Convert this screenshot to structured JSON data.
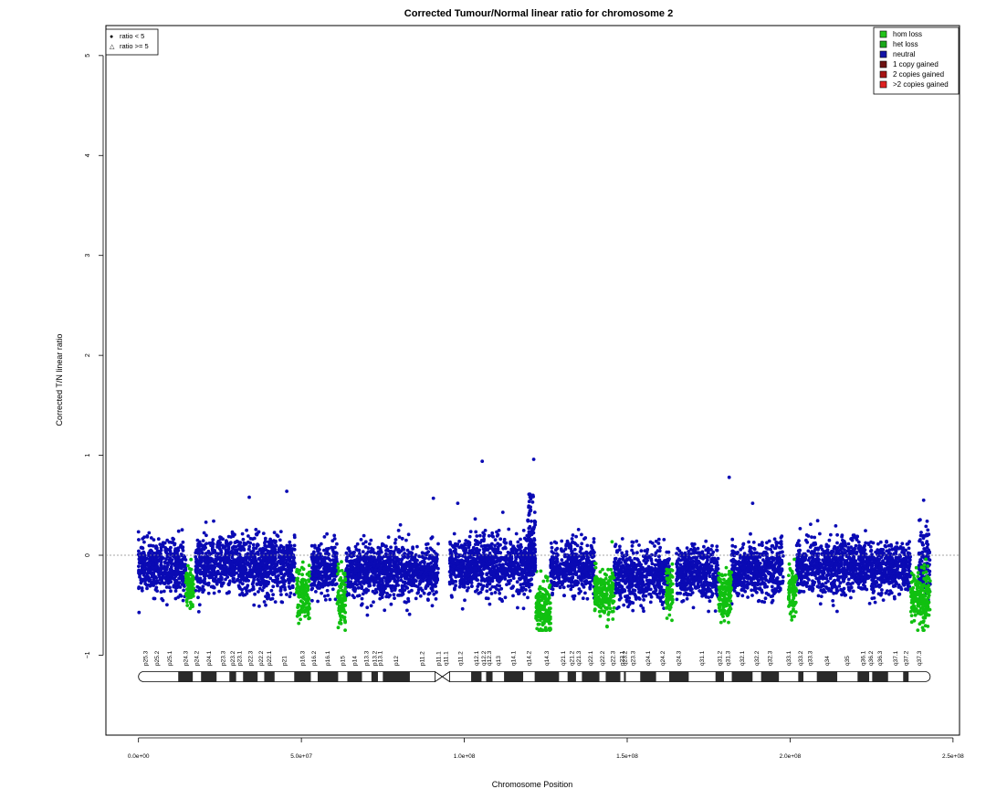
{
  "chart_data": {
    "type": "scatter",
    "title": "Corrected Tumour/Normal linear ratio for chromosome  2",
    "xlabel": "Chromosome Position",
    "ylabel": "Corrected T/N linear ratio",
    "xlim": [
      -10000000,
      252000000
    ],
    "ylim": [
      -1.8,
      5.3
    ],
    "x_ticks": [
      0,
      50000000,
      100000000,
      150000000,
      200000000,
      250000000
    ],
    "x_tick_labels": [
      "0.0e+00",
      "5.0e+07",
      "1.0e+08",
      "1.5e+08",
      "2.0e+08",
      "2.5e+08"
    ],
    "y_ticks": [
      -1,
      0,
      1,
      2,
      3,
      4,
      5
    ],
    "y_tick_labels": [
      "−1",
      "0",
      "1",
      "2",
      "3",
      "4",
      "5"
    ],
    "reference_line": 0,
    "grid": false,
    "shape_legend": {
      "placement": "top-left",
      "items": [
        {
          "symbol": "●",
          "label": "ratio < 5"
        },
        {
          "symbol": "△",
          "label": "ratio >= 5"
        }
      ]
    },
    "legend": {
      "placement": "top-right",
      "items": [
        {
          "label": "hom loss",
          "color": "#22c41a"
        },
        {
          "label": "het loss",
          "color": "#1aa81a"
        },
        {
          "label": "neutral",
          "color": "#1414a8"
        },
        {
          "label": "1 copy gained",
          "color": "#6e1212"
        },
        {
          "label": "2 copies gained",
          "color": "#a81414"
        },
        {
          "label": ">2 copies gained",
          "color": "#e02020"
        }
      ]
    },
    "colors": {
      "neutral": "#0a0ab4",
      "loss": "#10c010"
    },
    "series": [
      {
        "name": "neutral",
        "segments": [
          {
            "start": 0,
            "end": 14500000,
            "mean": -0.12,
            "sd": 0.13
          },
          {
            "start": 17500000,
            "end": 48000000,
            "mean": -0.1,
            "sd": 0.14
          },
          {
            "start": 53000000,
            "end": 61000000,
            "mean": -0.14,
            "sd": 0.13
          },
          {
            "start": 63500000,
            "end": 92000000,
            "mean": -0.16,
            "sd": 0.13
          },
          {
            "start": 95500000,
            "end": 121000000,
            "mean": -0.1,
            "sd": 0.14
          },
          {
            "start": 126500000,
            "end": 140000000,
            "mean": -0.13,
            "sd": 0.13
          },
          {
            "start": 146000000,
            "end": 163000000,
            "mean": -0.2,
            "sd": 0.13
          },
          {
            "start": 165000000,
            "end": 178000000,
            "mean": -0.18,
            "sd": 0.13
          },
          {
            "start": 182000000,
            "end": 198000000,
            "mean": -0.15,
            "sd": 0.13
          },
          {
            "start": 202000000,
            "end": 237000000,
            "mean": -0.12,
            "sd": 0.13
          },
          {
            "start": 239500000,
            "end": 243000000,
            "mean": -0.08,
            "sd": 0.16
          }
        ]
      },
      {
        "name": "het loss",
        "segments": [
          {
            "start": 14500000,
            "end": 17000000,
            "mean": -0.33,
            "sd": 0.1
          },
          {
            "start": 48500000,
            "end": 52500000,
            "mean": -0.38,
            "sd": 0.12
          },
          {
            "start": 61000000,
            "end": 63500000,
            "mean": -0.42,
            "sd": 0.14
          },
          {
            "start": 122000000,
            "end": 126500000,
            "mean": -0.55,
            "sd": 0.14
          },
          {
            "start": 140000000,
            "end": 146000000,
            "mean": -0.38,
            "sd": 0.12
          },
          {
            "start": 162000000,
            "end": 164000000,
            "mean": -0.38,
            "sd": 0.12
          },
          {
            "start": 178000000,
            "end": 182000000,
            "mean": -0.4,
            "sd": 0.12
          },
          {
            "start": 199500000,
            "end": 202000000,
            "mean": -0.35,
            "sd": 0.12
          },
          {
            "start": 237000000,
            "end": 243000000,
            "mean": -0.42,
            "sd": 0.13
          }
        ]
      }
    ],
    "peak_region": {
      "start": 119500000,
      "end": 121800000,
      "max_y": 0.96
    },
    "outliers": [
      {
        "x": 45500000,
        "y": 0.64
      },
      {
        "x": 34000000,
        "y": 0.58
      },
      {
        "x": 90500000,
        "y": 0.57
      },
      {
        "x": 105500000,
        "y": 0.94
      },
      {
        "x": 121300000,
        "y": 0.96
      },
      {
        "x": 181300000,
        "y": 0.78
      },
      {
        "x": 188500000,
        "y": 0.52
      },
      {
        "x": 98000000,
        "y": 0.52
      },
      {
        "x": 241000000,
        "y": 0.55
      }
    ],
    "ideogram": {
      "length": 243000000,
      "centromere": [
        91000000,
        95500000
      ],
      "bands": [
        {
          "name": "p25.3",
          "start": 0,
          "end": 4400000
        },
        {
          "name": "p25.2",
          "start": 4400000,
          "end": 7000000
        },
        {
          "name": "p25.1",
          "start": 7000000,
          "end": 12200000
        },
        {
          "name": "p24.3",
          "start": 12200000,
          "end": 16700000
        },
        {
          "name": "p24.2",
          "start": 16700000,
          "end": 19200000
        },
        {
          "name": "p24.1",
          "start": 19200000,
          "end": 24000000
        },
        {
          "name": "p23.3",
          "start": 24000000,
          "end": 27900000
        },
        {
          "name": "p23.2",
          "start": 27900000,
          "end": 30000000
        },
        {
          "name": "p23.1",
          "start": 30000000,
          "end": 32100000
        },
        {
          "name": "p22.3",
          "start": 32100000,
          "end": 36600000
        },
        {
          "name": "p22.2",
          "start": 36600000,
          "end": 38600000
        },
        {
          "name": "p22.1",
          "start": 38600000,
          "end": 41800000
        },
        {
          "name": "p21",
          "start": 41800000,
          "end": 47800000
        },
        {
          "name": "p16.3",
          "start": 47800000,
          "end": 52900000
        },
        {
          "name": "p16.2",
          "start": 52900000,
          "end": 55000000
        },
        {
          "name": "p16.1",
          "start": 55000000,
          "end": 61300000
        },
        {
          "name": "p15",
          "start": 61300000,
          "end": 64100000
        },
        {
          "name": "p14",
          "start": 64100000,
          "end": 68600000
        },
        {
          "name": "p13.3",
          "start": 68600000,
          "end": 71500000
        },
        {
          "name": "p13.2",
          "start": 71500000,
          "end": 73500000
        },
        {
          "name": "p13.1",
          "start": 73500000,
          "end": 75000000
        },
        {
          "name": "p12",
          "start": 75000000,
          "end": 83300000
        },
        {
          "name": "p11.2",
          "start": 83300000,
          "end": 91000000
        },
        {
          "name": "p11.1",
          "start": 91000000,
          "end": 93300000
        },
        {
          "name": "q11.1",
          "start": 93300000,
          "end": 95500000
        },
        {
          "name": "q11.2",
          "start": 95500000,
          "end": 102100000
        },
        {
          "name": "q12.1",
          "start": 102100000,
          "end": 105300000
        },
        {
          "name": "q12.2",
          "start": 105300000,
          "end": 106700000
        },
        {
          "name": "q12.3",
          "start": 106700000,
          "end": 108700000
        },
        {
          "name": "q13",
          "start": 108700000,
          "end": 112200000
        },
        {
          "name": "q14.1",
          "start": 112200000,
          "end": 118100000
        },
        {
          "name": "q14.2",
          "start": 118100000,
          "end": 121600000
        },
        {
          "name": "q14.3",
          "start": 121600000,
          "end": 129100000
        },
        {
          "name": "q21.1",
          "start": 129100000,
          "end": 131700000
        },
        {
          "name": "q21.2",
          "start": 131700000,
          "end": 134300000
        },
        {
          "name": "q21.3",
          "start": 134300000,
          "end": 136100000
        },
        {
          "name": "q22.1",
          "start": 136100000,
          "end": 141500000
        },
        {
          "name": "q22.2",
          "start": 141500000,
          "end": 143400000
        },
        {
          "name": "q22.3",
          "start": 143400000,
          "end": 147900000
        },
        {
          "name": "q23.1",
          "start": 147900000,
          "end": 149000000
        },
        {
          "name": "q23.2",
          "start": 149000000,
          "end": 149600000
        },
        {
          "name": "q23.3",
          "start": 149600000,
          "end": 154000000
        },
        {
          "name": "q24.1",
          "start": 154000000,
          "end": 158900000
        },
        {
          "name": "q24.2",
          "start": 158900000,
          "end": 162900000
        },
        {
          "name": "q24.3",
          "start": 162900000,
          "end": 168900000
        },
        {
          "name": "q31.1",
          "start": 168900000,
          "end": 177100000
        },
        {
          "name": "q31.2",
          "start": 177100000,
          "end": 179700000
        },
        {
          "name": "q31.3",
          "start": 179700000,
          "end": 182100000
        },
        {
          "name": "q32.1",
          "start": 182100000,
          "end": 188500000
        },
        {
          "name": "q32.2",
          "start": 188500000,
          "end": 191100000
        },
        {
          "name": "q32.3",
          "start": 191100000,
          "end": 196600000
        },
        {
          "name": "q33.1",
          "start": 196600000,
          "end": 202500000
        },
        {
          "name": "q33.2",
          "start": 202500000,
          "end": 204100000
        },
        {
          "name": "q33.3",
          "start": 204100000,
          "end": 208200000
        },
        {
          "name": "q34",
          "start": 208200000,
          "end": 214500000
        },
        {
          "name": "q35",
          "start": 214500000,
          "end": 220700000
        },
        {
          "name": "q36.1",
          "start": 220700000,
          "end": 224300000
        },
        {
          "name": "q36.2",
          "start": 224300000,
          "end": 225200000
        },
        {
          "name": "q36.3",
          "start": 225200000,
          "end": 230100000
        },
        {
          "name": "q37.1",
          "start": 230100000,
          "end": 234700000
        },
        {
          "name": "q37.2",
          "start": 234700000,
          "end": 236400000
        },
        {
          "name": "q37.3",
          "start": 236400000,
          "end": 243000000
        }
      ]
    }
  }
}
